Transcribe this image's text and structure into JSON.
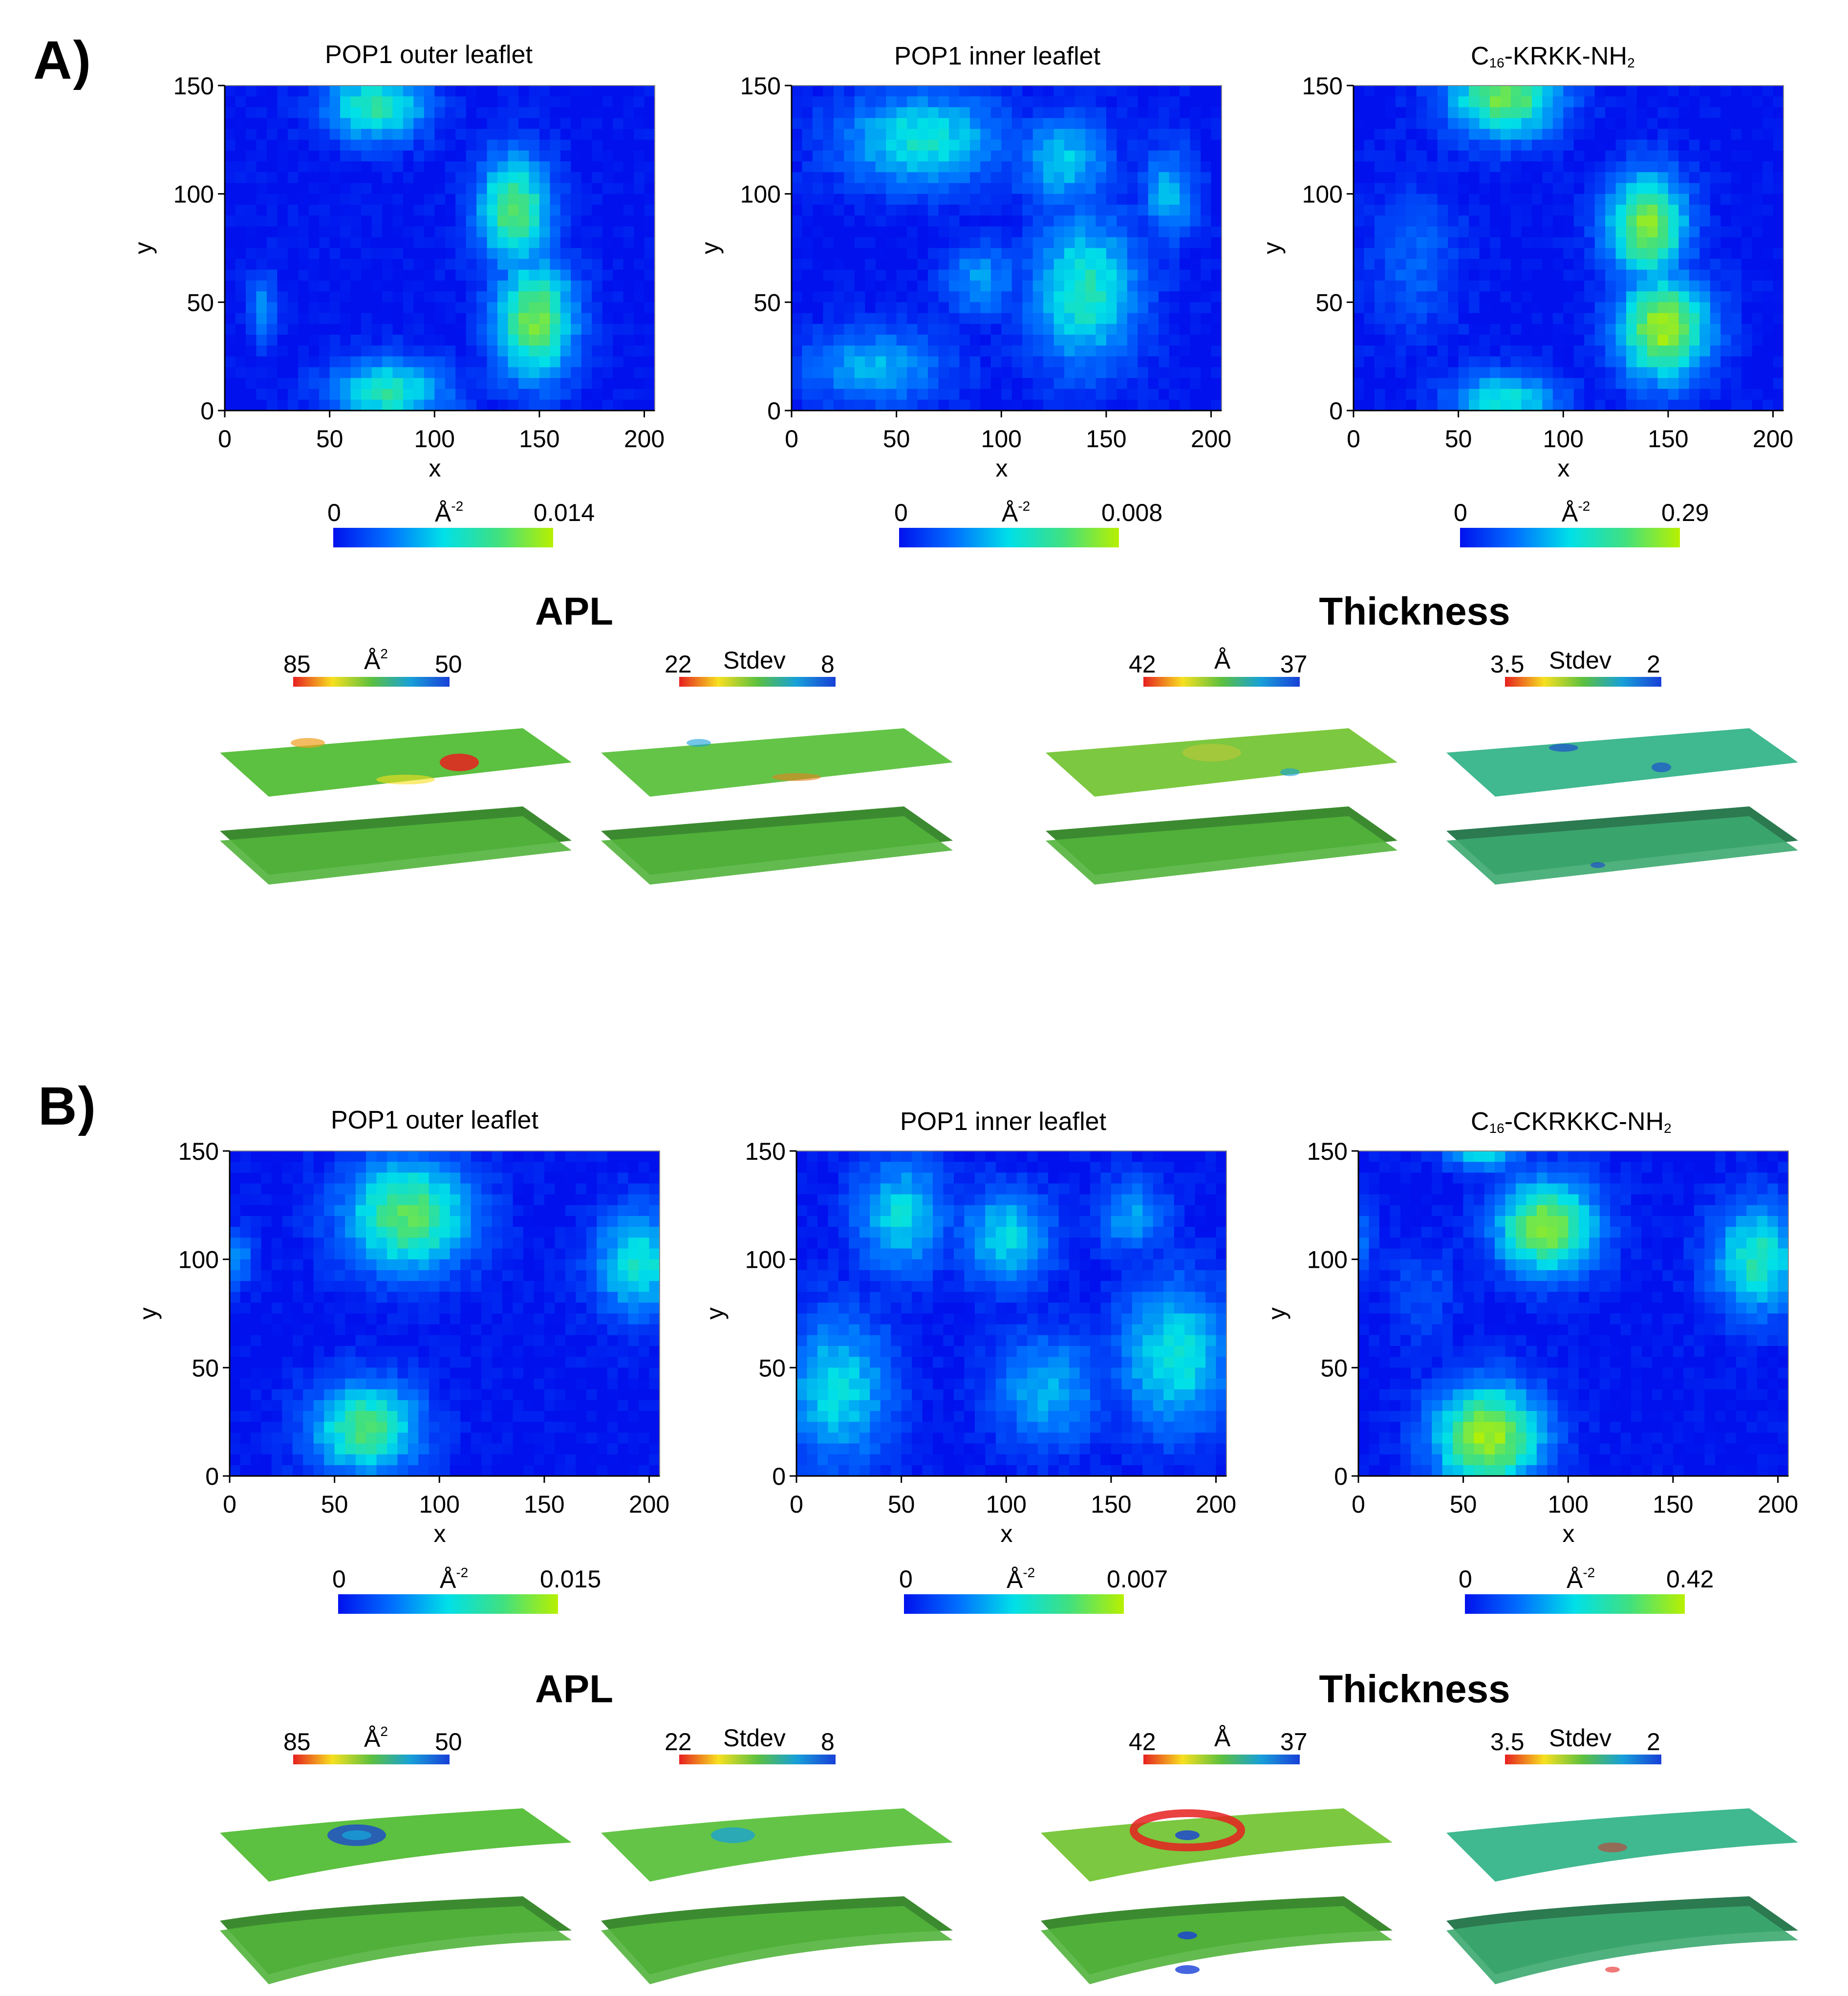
{
  "panels": [
    {
      "label": "A)",
      "heatmaps": [
        {
          "title": "POP1 outer leaflet",
          "cb_min": "0",
          "cb_unit": "Å",
          "cb_unit_sup": "-2",
          "cb_max": "0.014",
          "title_prefix": "",
          "title_sub": "",
          "title_suffix": "",
          "title_sub2": ""
        },
        {
          "title": "POP1 inner leaflet",
          "cb_min": "0",
          "cb_unit": "Å",
          "cb_unit_sup": "-2",
          "cb_max": "0.008",
          "title_prefix": "",
          "title_sub": "",
          "title_suffix": "",
          "title_sub2": ""
        },
        {
          "title": "",
          "title_prefix": "C",
          "title_sub": "16",
          "title_suffix": "-KRKK-NH",
          "title_sub2": "2",
          "cb_min": "0",
          "cb_unit": "Å",
          "cb_unit_sup": "-2",
          "cb_max": "0.29"
        }
      ],
      "apl_title": "APL",
      "thickness_title": "Thickness",
      "surfaces": [
        {
          "left": "85",
          "unit": "Å",
          "unit_sup": "2",
          "right": "50"
        },
        {
          "left": "22",
          "unit": "Stdev",
          "unit_sup": "",
          "right": "8"
        },
        {
          "left": "42",
          "unit": "Å",
          "unit_sup": "",
          "right": "37"
        },
        {
          "left": "3.5",
          "unit": "Stdev",
          "unit_sup": "",
          "right": "2"
        }
      ]
    },
    {
      "label": "B)",
      "heatmaps": [
        {
          "title": "POP1 outer leaflet",
          "cb_min": "0",
          "cb_unit": "Å",
          "cb_unit_sup": "-2",
          "cb_max": "0.015",
          "title_prefix": "",
          "title_sub": "",
          "title_suffix": "",
          "title_sub2": ""
        },
        {
          "title": "POP1 inner leaflet",
          "cb_min": "0",
          "cb_unit": "Å",
          "cb_unit_sup": "-2",
          "cb_max": "0.007",
          "title_prefix": "",
          "title_sub": "",
          "title_suffix": "",
          "title_sub2": ""
        },
        {
          "title": "",
          "title_prefix": "C",
          "title_sub": "16",
          "title_suffix": "-CKRKKC-NH",
          "title_sub2": "2",
          "cb_min": "0",
          "cb_unit": "Å",
          "cb_unit_sup": "-2",
          "cb_max": "0.42"
        }
      ],
      "apl_title": "APL",
      "thickness_title": "Thickness",
      "surfaces": [
        {
          "left": "85",
          "unit": "Å",
          "unit_sup": "2",
          "right": "50"
        },
        {
          "left": "22",
          "unit": "Stdev",
          "unit_sup": "",
          "right": "8"
        },
        {
          "left": "42",
          "unit": "Å",
          "unit_sup": "",
          "right": "37"
        },
        {
          "left": "3.5",
          "unit": "Stdev",
          "unit_sup": "",
          "right": "2"
        }
      ]
    }
  ],
  "chart_data": [
    {
      "type": "heatmap",
      "panel": "A",
      "title": "POP1 outer leaflet",
      "xlabel": "x",
      "ylabel": "y",
      "xlim": [
        0,
        205
      ],
      "ylim": [
        0,
        150
      ],
      "xticks": [
        0,
        50,
        100,
        150,
        200
      ],
      "yticks": [
        0,
        50,
        100,
        150
      ],
      "colorbar": {
        "min": 0,
        "max": 0.014,
        "unit": "Å-2"
      },
      "hotspots": [
        {
          "x": 72,
          "y": 140,
          "rx": 28,
          "ry": 18,
          "v": 0.7
        },
        {
          "x": 138,
          "y": 92,
          "rx": 20,
          "ry": 30,
          "v": 0.8
        },
        {
          "x": 148,
          "y": 42,
          "rx": 22,
          "ry": 32,
          "v": 0.85
        },
        {
          "x": 78,
          "y": 8,
          "rx": 32,
          "ry": 18,
          "v": 0.65
        },
        {
          "x": 18,
          "y": 48,
          "rx": 8,
          "ry": 20,
          "v": 0.35
        }
      ]
    },
    {
      "type": "heatmap",
      "panel": "A",
      "title": "POP1 inner leaflet",
      "xlabel": "x",
      "ylabel": "y",
      "xlim": [
        0,
        205
      ],
      "ylim": [
        0,
        150
      ],
      "xticks": [
        0,
        50,
        100,
        150,
        200
      ],
      "yticks": [
        0,
        50,
        100,
        150
      ],
      "colorbar": {
        "min": 0,
        "max": 0.008,
        "unit": "Å-2"
      },
      "hotspots": [
        {
          "x": 62,
          "y": 125,
          "rx": 45,
          "ry": 25,
          "v": 0.6
        },
        {
          "x": 140,
          "y": 55,
          "rx": 30,
          "ry": 40,
          "v": 0.65
        },
        {
          "x": 130,
          "y": 115,
          "rx": 25,
          "ry": 25,
          "v": 0.5
        },
        {
          "x": 40,
          "y": 20,
          "rx": 40,
          "ry": 20,
          "v": 0.45
        },
        {
          "x": 180,
          "y": 100,
          "rx": 15,
          "ry": 25,
          "v": 0.45
        },
        {
          "x": 90,
          "y": 60,
          "rx": 20,
          "ry": 20,
          "v": 0.4
        }
      ]
    },
    {
      "type": "heatmap",
      "panel": "A",
      "title": "C16-KRKK-NH2",
      "xlabel": "x",
      "ylabel": "y",
      "xlim": [
        0,
        205
      ],
      "ylim": [
        0,
        150
      ],
      "xticks": [
        0,
        50,
        100,
        150,
        200
      ],
      "yticks": [
        0,
        50,
        100,
        150
      ],
      "colorbar": {
        "min": 0,
        "max": 0.29,
        "unit": "Å-2"
      },
      "hotspots": [
        {
          "x": 72,
          "y": 145,
          "rx": 30,
          "ry": 22,
          "v": 0.85
        },
        {
          "x": 140,
          "y": 85,
          "rx": 22,
          "ry": 28,
          "v": 0.9
        },
        {
          "x": 148,
          "y": 38,
          "rx": 25,
          "ry": 28,
          "v": 0.95
        },
        {
          "x": 72,
          "y": 5,
          "rx": 30,
          "ry": 15,
          "v": 0.6
        },
        {
          "x": 30,
          "y": 70,
          "rx": 25,
          "ry": 40,
          "v": 0.25
        }
      ]
    },
    {
      "type": "heatmap",
      "panel": "B",
      "title": "POP1 outer leaflet",
      "xlabel": "x",
      "ylabel": "y",
      "xlim": [
        0,
        205
      ],
      "ylim": [
        0,
        150
      ],
      "xticks": [
        0,
        50,
        100,
        150,
        200
      ],
      "yticks": [
        0,
        50,
        100,
        150
      ],
      "colorbar": {
        "min": 0,
        "max": 0.015,
        "unit": "Å-2"
      },
      "hotspots": [
        {
          "x": 85,
          "y": 120,
          "rx": 35,
          "ry": 30,
          "v": 0.8
        },
        {
          "x": 65,
          "y": 22,
          "rx": 30,
          "ry": 25,
          "v": 0.75
        },
        {
          "x": 195,
          "y": 98,
          "rx": 25,
          "ry": 28,
          "v": 0.6
        },
        {
          "x": 2,
          "y": 100,
          "rx": 10,
          "ry": 15,
          "v": 0.4
        }
      ]
    },
    {
      "type": "heatmap",
      "panel": "B",
      "title": "POP1 inner leaflet",
      "xlabel": "x",
      "ylabel": "y",
      "xlim": [
        0,
        205
      ],
      "ylim": [
        0,
        150
      ],
      "xticks": [
        0,
        50,
        100,
        150,
        200
      ],
      "yticks": [
        0,
        50,
        100,
        150
      ],
      "colorbar": {
        "min": 0,
        "max": 0.007,
        "unit": "Å-2"
      },
      "hotspots": [
        {
          "x": 50,
          "y": 120,
          "rx": 25,
          "ry": 30,
          "v": 0.55
        },
        {
          "x": 100,
          "y": 110,
          "rx": 25,
          "ry": 25,
          "v": 0.55
        },
        {
          "x": 20,
          "y": 40,
          "rx": 30,
          "ry": 40,
          "v": 0.55
        },
        {
          "x": 180,
          "y": 55,
          "rx": 30,
          "ry": 40,
          "v": 0.6
        },
        {
          "x": 120,
          "y": 40,
          "rx": 30,
          "ry": 30,
          "v": 0.45
        },
        {
          "x": 160,
          "y": 120,
          "rx": 20,
          "ry": 20,
          "v": 0.4
        }
      ]
    },
    {
      "type": "heatmap",
      "panel": "B",
      "title": "C16-CKRKKC-NH2",
      "xlabel": "x",
      "ylabel": "y",
      "xlim": [
        0,
        205
      ],
      "ylim": [
        0,
        150
      ],
      "xticks": [
        0,
        50,
        100,
        150,
        200
      ],
      "yticks": [
        0,
        50,
        100,
        150
      ],
      "colorbar": {
        "min": 0,
        "max": 0.42,
        "unit": "Å-2"
      },
      "hotspots": [
        {
          "x": 90,
          "y": 115,
          "rx": 28,
          "ry": 25,
          "v": 0.9
        },
        {
          "x": 62,
          "y": 18,
          "rx": 30,
          "ry": 28,
          "v": 0.95
        },
        {
          "x": 190,
          "y": 100,
          "rx": 25,
          "ry": 30,
          "v": 0.65
        },
        {
          "x": 60,
          "y": 150,
          "rx": 20,
          "ry": 10,
          "v": 0.6
        },
        {
          "x": 30,
          "y": 85,
          "rx": 20,
          "ry": 25,
          "v": 0.2
        },
        {
          "x": 0,
          "y": 110,
          "rx": 8,
          "ry": 20,
          "v": 0.3
        }
      ]
    }
  ],
  "colors": {
    "cmap_low": "#0011ee",
    "cmap_mid": "#00e0e8",
    "cmap_high": "#b8f000",
    "rwb_red": "#e62020",
    "rwb_yellow": "#f7e020",
    "rwb_blue": "#1840d8",
    "surface_base": "#5cc040"
  }
}
